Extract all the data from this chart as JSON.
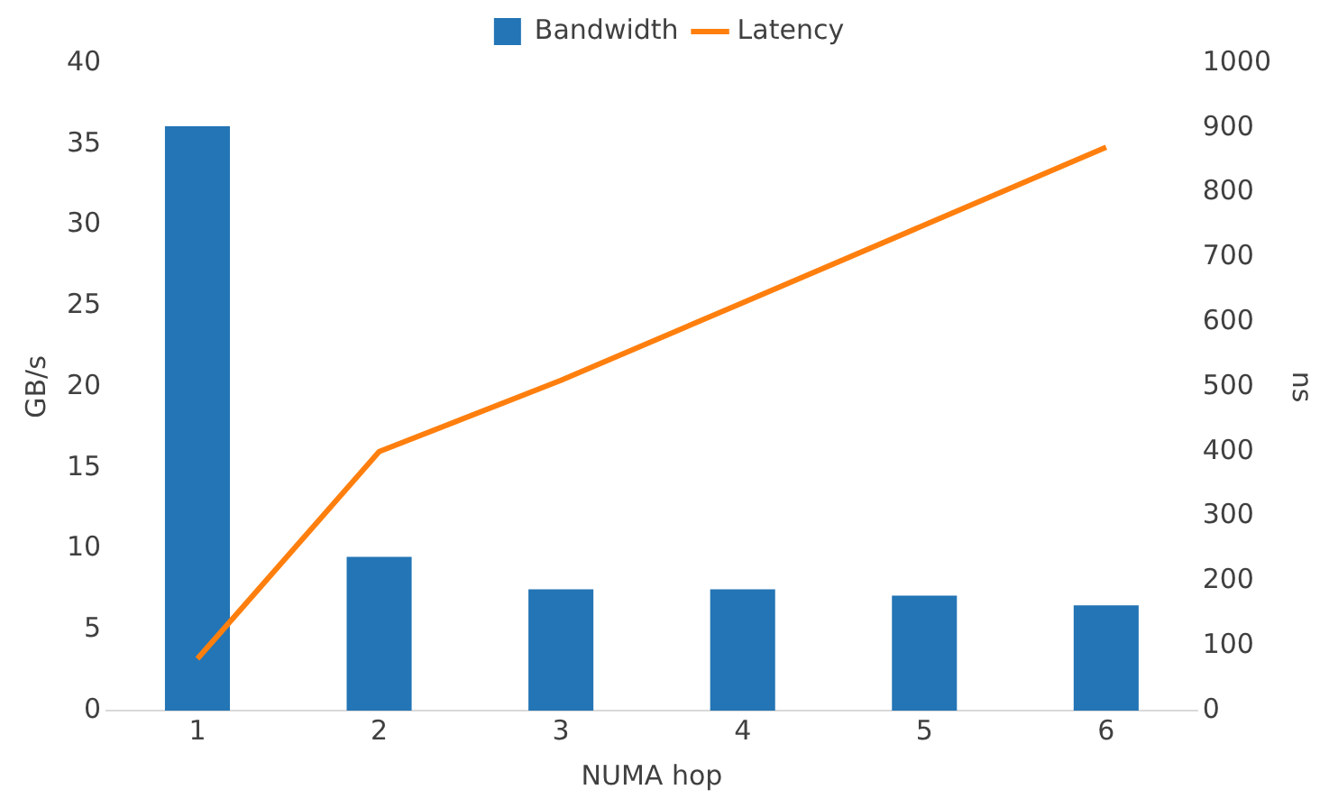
{
  "chart_data": {
    "type": "bar",
    "xlabel": "NUMA hop",
    "ylabel": "GB/s",
    "y2label": "ns",
    "categories": [
      "1",
      "2",
      "3",
      "4",
      "5",
      "6"
    ],
    "series": [
      {
        "name": "Bandwidth",
        "color": "#2375b5",
        "values": [
          36.1,
          9.5,
          7.5,
          7.5,
          7.1,
          6.5
        ]
      },
      {
        "name": "Latency",
        "type": "line",
        "axis": "y2",
        "color": "#ff7f0e",
        "values": [
          80,
          400,
          510,
          630,
          750,
          870
        ]
      }
    ],
    "ylim": [
      0,
      40
    ],
    "yticks": [
      0,
      5,
      10,
      15,
      20,
      25,
      30,
      35,
      40
    ],
    "y2lim": [
      0,
      1000
    ],
    "y2ticks": [
      0,
      100,
      200,
      300,
      400,
      500,
      600,
      700,
      800,
      900,
      1000
    ],
    "grid": false,
    "legend": "top"
  }
}
